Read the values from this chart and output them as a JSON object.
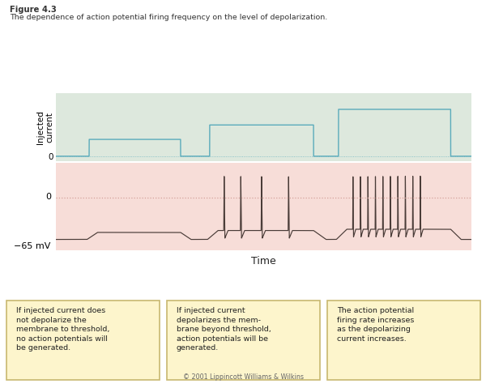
{
  "figure_label": "Figure 4.3",
  "figure_subtitle": "The dependence of action potential firing frequency on the level of depolarization.",
  "top_bg_color": "#dde8dd",
  "bottom_bg_color": "#f7ddd8",
  "injected_ylabel": "Injected\ncurrent",
  "time_label": "Time",
  "dashed_color": "#d4a09a",
  "current_line_color": "#5aabbb",
  "voltage_line_color": "#4a3c38",
  "box_bg_color": "#fdf5cc",
  "box_border_color": "#c8b870",
  "box_texts": [
    "If injected current does\nnot depolarize the\nmembrane to threshold,\nno action potentials will\nbe generated.",
    "If injected current\ndepolarizes the mem-\nbrane beyond threshold,\naction potentials will be\ngenerated.",
    "The action potential\nfiring rate increases\nas the depolarizing\ncurrent increases."
  ],
  "copyright_text": "© 2001 Lippincott Williams & Wilkins"
}
